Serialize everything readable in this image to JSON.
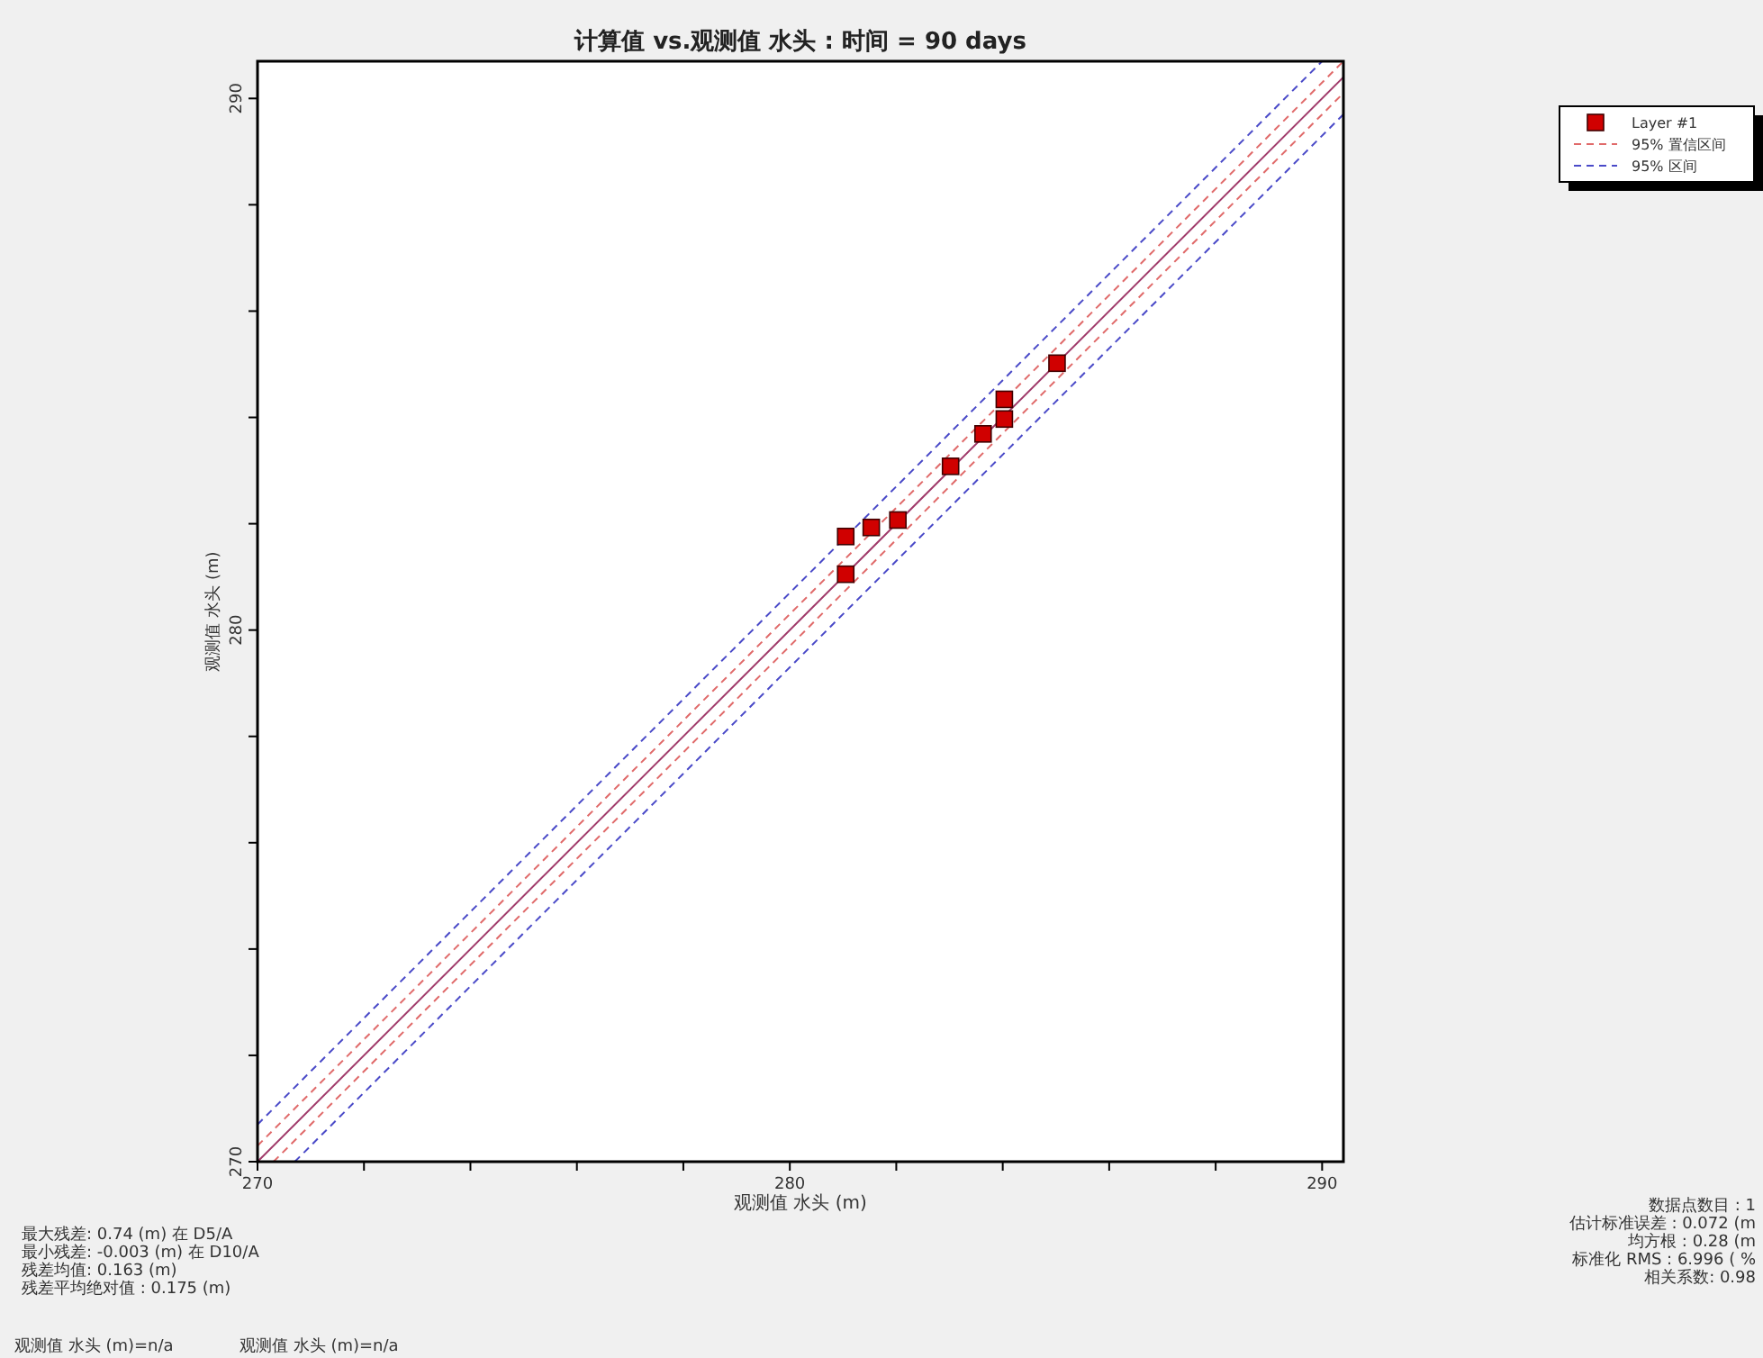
{
  "chart_data": {
    "type": "scatter",
    "title": "计算值 vs.观测值 水头 : 时间 = 90 days",
    "xlabel": "观测值 水头 (m)",
    "ylabel": "观测值 水头 (m)",
    "xlim": [
      270,
      290.4
    ],
    "ylim": [
      270,
      290.7
    ],
    "xticks": [
      270,
      {
        "value": 272,
        "label": null
      },
      {
        "value": 274,
        "label": null
      },
      {
        "value": 276,
        "label": null
      },
      {
        "value": 278,
        "label": null
      },
      280,
      {
        "value": 282,
        "label": null
      },
      {
        "value": 284,
        "label": null
      },
      {
        "value": 286,
        "label": null
      },
      {
        "value": 288,
        "label": null
      },
      290
    ],
    "yticks": [
      270,
      {
        "value": 272,
        "label": null
      },
      {
        "value": 274,
        "label": null
      },
      {
        "value": 276,
        "label": null
      },
      {
        "value": 278,
        "label": null
      },
      280,
      {
        "value": 282,
        "label": null
      },
      {
        "value": 284,
        "label": null
      },
      {
        "value": 286,
        "label": null
      },
      {
        "value": 288,
        "label": null
      },
      290
    ],
    "legend": "top right",
    "series": [
      {
        "name": "Layer #1",
        "color": "#d00000",
        "marker": "square",
        "x": [
          281.05,
          281.05,
          281.53,
          282.03,
          283.02,
          283.63,
          284.03,
          284.03,
          285.02
        ],
        "values": [
          281.76,
          281.05,
          281.93,
          282.07,
          283.08,
          283.69,
          284.34,
          283.97,
          285.02
        ]
      },
      {
        "type": "line",
        "color": "#a03a6a",
        "line_style": "solid",
        "x": [
          270,
          290.4
        ],
        "values": [
          270,
          290.4
        ]
      },
      {
        "type": "line",
        "name": "95% 置信区间",
        "color": "#e06a6a",
        "line_style": "dashed",
        "x": [
          270,
          290.4
        ],
        "values": [
          270.3,
          290.7
        ]
      },
      {
        "type": "line",
        "color": "#e06a6a",
        "line_style": "dashed",
        "x": [
          270.3,
          290.4
        ],
        "values": [
          270,
          290.1
        ]
      },
      {
        "type": "line",
        "name": "95% 区间",
        "color": "#4a4ac8",
        "line_style": "dashed",
        "x": [
          270,
          290
        ],
        "values": [
          270.7,
          290.7
        ]
      },
      {
        "type": "line",
        "color": "#4a4ac8",
        "line_style": "dashed",
        "x": [
          270.7,
          290.4
        ],
        "values": [
          270,
          289.7
        ]
      }
    ],
    "annotations": [
      "最大残差: 0.74 (m) 在 D5/A",
      "最小残差: -0.003 (m) 在 D10/A",
      "残差均值: 0.163 (m)",
      "残差平均绝对值 : 0.175 (m)",
      "观测值 水头 (m)=n/a",
      "观测值 水头 (m)=n/a",
      "数据点数目 : 1",
      "估计标准误差 : 0.072 (m",
      "均方根 : 0.28 (m",
      "标准化 RMS : 6.996 ( %",
      "相关系数: 0.98"
    ]
  }
}
